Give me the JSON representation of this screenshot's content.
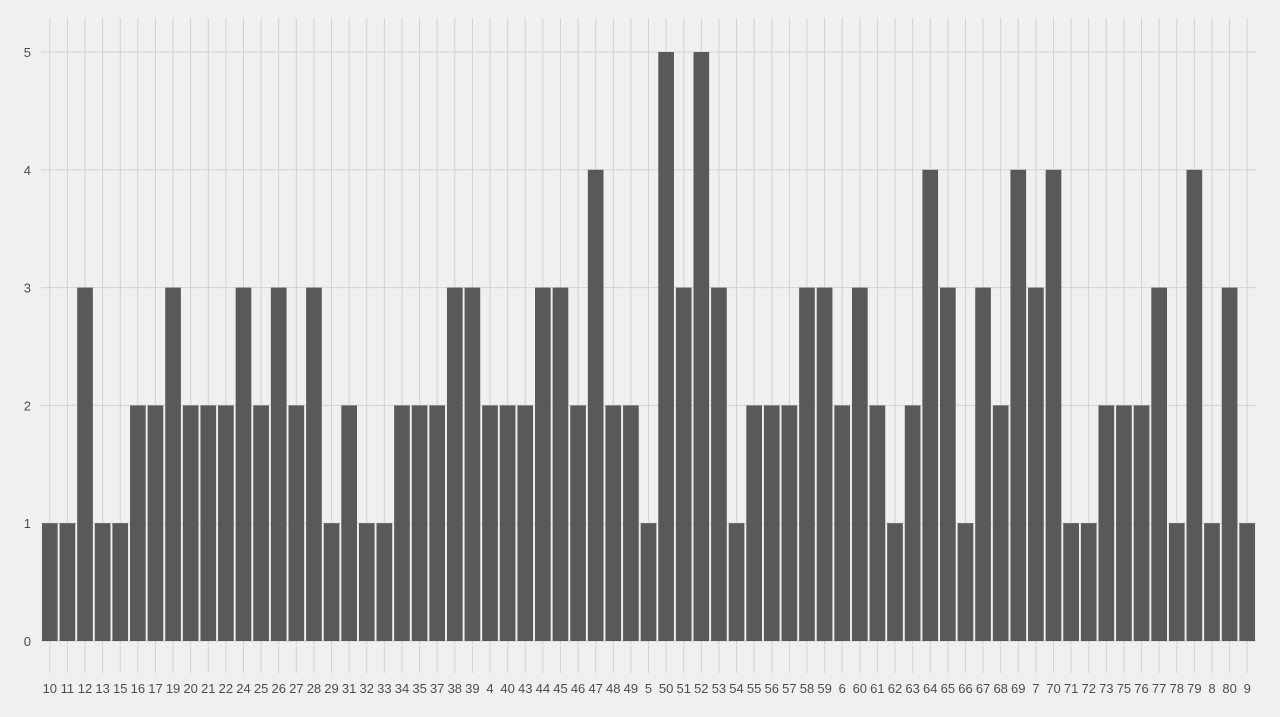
{
  "colors": {
    "background": "#f0f0f0",
    "bar": "#595959",
    "grid": "#d2d2d2",
    "tick_text": "#4d4d4d"
  },
  "chart_data": {
    "type": "bar",
    "title": "",
    "xlabel": "",
    "ylabel": "",
    "ylim": [
      0,
      5.25
    ],
    "yticks": [
      0,
      1,
      2,
      3,
      4,
      5
    ],
    "grid": true,
    "legend": "none",
    "categories": [
      "10",
      "11",
      "12",
      "13",
      "15",
      "16",
      "17",
      "19",
      "20",
      "21",
      "22",
      "24",
      "25",
      "26",
      "27",
      "28",
      "29",
      "31",
      "32",
      "33",
      "34",
      "35",
      "37",
      "38",
      "39",
      "4",
      "40",
      "43",
      "44",
      "45",
      "46",
      "47",
      "48",
      "49",
      "5",
      "50",
      "51",
      "52",
      "53",
      "54",
      "55",
      "56",
      "57",
      "58",
      "59",
      "6",
      "60",
      "61",
      "62",
      "63",
      "64",
      "65",
      "66",
      "67",
      "68",
      "69",
      "7",
      "70",
      "71",
      "72",
      "73",
      "75",
      "76",
      "77",
      "78",
      "79",
      "8",
      "80",
      "9"
    ],
    "values": [
      1,
      1,
      3,
      1,
      1,
      2,
      2,
      3,
      2,
      2,
      2,
      3,
      2,
      3,
      2,
      3,
      1,
      2,
      1,
      1,
      2,
      2,
      2,
      3,
      3,
      2,
      2,
      2,
      3,
      3,
      2,
      4,
      2,
      2,
      1,
      5,
      3,
      5,
      3,
      1,
      2,
      2,
      2,
      3,
      3,
      2,
      3,
      2,
      1,
      2,
      4,
      3,
      1,
      3,
      2,
      4,
      3,
      4,
      1,
      1,
      2,
      2,
      2,
      3,
      1,
      4,
      1,
      3,
      1
    ]
  }
}
